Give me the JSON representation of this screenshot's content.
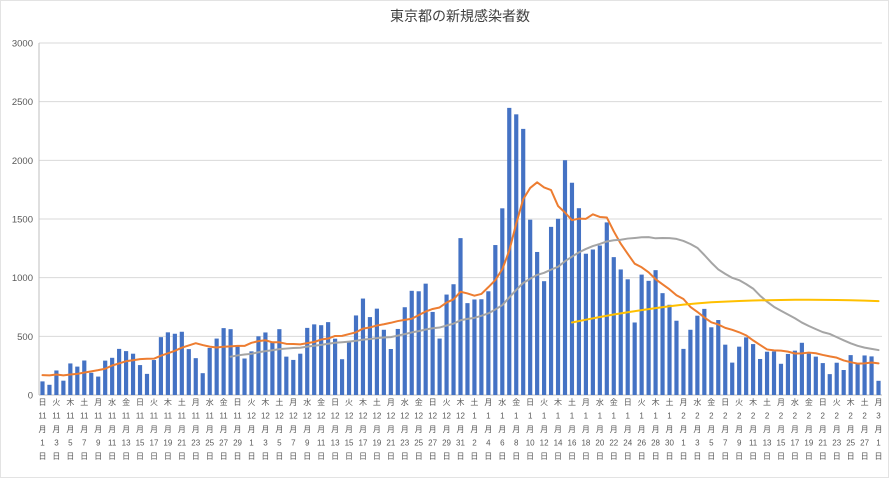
{
  "window": {
    "background": "#ffffff"
  },
  "chart_theme": {
    "background": "#ffffff",
    "border_color": "#e3e3e3",
    "grid_color": "#d9d9d9",
    "axis_color": "#bfbfbf",
    "tick_text_color": "#595959",
    "title_color": "#404040"
  },
  "chart_data": {
    "type": "bar",
    "title": "東京都の新規感染者数",
    "ylim": [
      0,
      3000
    ],
    "y_ticks": [
      0,
      500,
      1000,
      1500,
      2000,
      2500,
      3000
    ],
    "grid": true,
    "legend": "none",
    "x_tick_every": 2,
    "x_tick_labels": [
      "日 11月1日",
      "火 11月3日",
      "木 11月5日",
      "土 11月7日",
      "月 11月9日",
      "水 11月11日",
      "金 11月13日",
      "日 11月15日",
      "火 11月17日",
      "木 11月19日",
      "土 11月21日",
      "月 11月23日",
      "水 11月25日",
      "金 11月27日",
      "日 11月29日",
      "火 12月1日",
      "木 12月3日",
      "土 12月5日",
      "月 12月7日",
      "水 12月9日",
      "金 12月11日",
      "日 12月13日",
      "火 12月15日",
      "木 12月17日",
      "土 12月19日",
      "月 12月21日",
      "水 12月23日",
      "金 12月25日",
      "日 12月27日",
      "火 12月29日",
      "木 12月31日",
      "土 1月2日",
      "月 1月4日",
      "水 1月6日",
      "金 1月8日",
      "日 1月10日",
      "火 1月12日",
      "木 1月14日",
      "土 1月16日",
      "月 1月18日",
      "水 1月20日",
      "金 1月22日",
      "日 1月24日",
      "火 1月26日",
      "木 1月28日",
      "土 1月30日",
      "月 2月1日",
      "水 2月3日",
      "金 2月5日",
      "日 2月7日",
      "火 2月9日",
      "木 2月11日",
      "土 2月13日",
      "月 2月15日",
      "水 2月17日",
      "金 2月19日",
      "日 2月21日",
      "火 2月23日",
      "木 2月25日",
      "土 2月27日",
      "月 3月1日"
    ],
    "series": [
      {
        "name": "daily-new-cases",
        "type": "bar",
        "color": "#4472c4",
        "values": [
          116,
          87,
          209,
          122,
          269,
          242,
          294,
          189,
          157,
          293,
          317,
          393,
          374,
          352,
          255,
          180,
          298,
          493,
          534,
          522,
          539,
          391,
          314,
          186,
          401,
          481,
          570,
          561,
          418,
          311,
          372,
          500,
          533,
          449,
          561,
          327,
          299,
          352,
          572,
          602,
          595,
          621,
          480,
          305,
          460,
          678,
          822,
          664,
          736,
          556,
          392,
          563,
          748,
          888,
          884,
          949,
          708,
          481,
          856,
          944,
          1337,
          783,
          814,
          816,
          884,
          1278,
          1591,
          2447,
          2392,
          2268,
          1494,
          1219,
          970,
          1433,
          1502,
          2001,
          1809,
          1592,
          1204,
          1240,
          1274,
          1471,
          1175,
          1070,
          986,
          618,
          1026,
          973,
          1064,
          868,
          769,
          633,
          393,
          556,
          676,
          734,
          577,
          639,
          429,
          276,
          412,
          491,
          434,
          307,
          369,
          371,
          266,
          350,
          378,
          445,
          353,
          327,
          272,
          178,
          275,
          213,
          340,
          270,
          337,
          329,
          121
        ]
      },
      {
        "name": "7-day-moving-average",
        "type": "line",
        "color": "#ed7d31",
        "derived_from": "daily-new-cases",
        "window": 7,
        "window_seed_values": [
          102,
          158,
          171,
          221,
          204,
          215
        ]
      },
      {
        "name": "28-day-moving-average",
        "type": "line",
        "color": "#a5a5a5",
        "derived_from": "daily-new-cases",
        "window": 28
      },
      {
        "name": "flattening-reference-line",
        "type": "line",
        "color": "#ffc000",
        "points": [
          [
            76,
            618
          ],
          [
            78,
            642
          ],
          [
            80,
            665
          ],
          [
            82,
            686
          ],
          [
            84,
            705
          ],
          [
            86,
            723
          ],
          [
            88,
            740
          ],
          [
            90,
            756
          ],
          [
            92,
            770
          ],
          [
            94,
            781
          ],
          [
            96,
            790
          ],
          [
            98,
            796
          ],
          [
            100,
            801
          ],
          [
            102,
            805
          ],
          [
            104,
            808
          ],
          [
            106,
            810
          ],
          [
            108,
            812
          ],
          [
            110,
            812
          ],
          [
            112,
            811
          ],
          [
            114,
            810
          ],
          [
            116,
            807
          ],
          [
            118,
            804
          ],
          [
            120,
            800
          ]
        ]
      }
    ]
  }
}
